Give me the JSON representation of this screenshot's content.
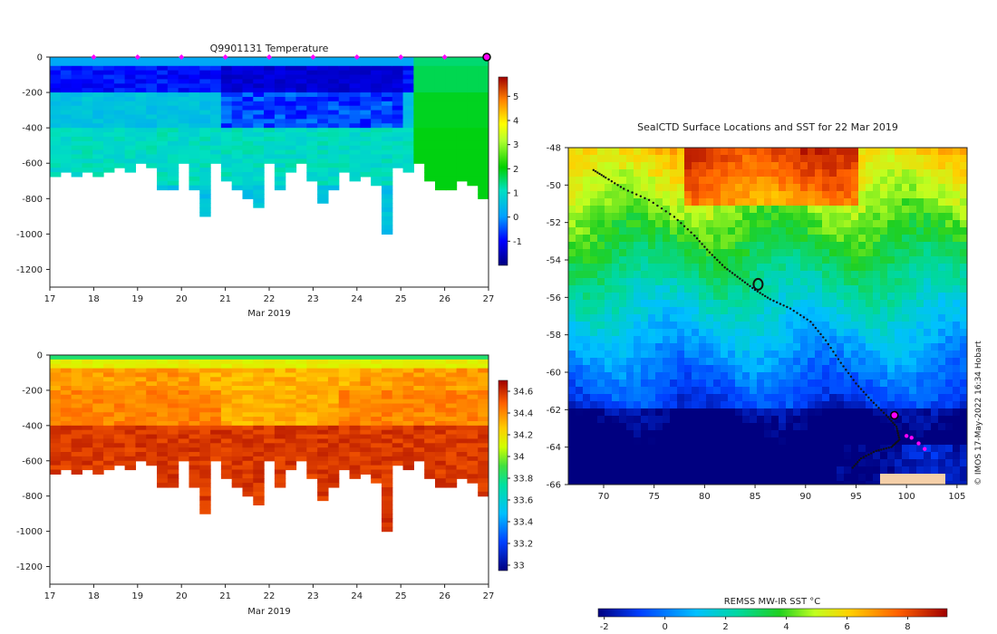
{
  "chart_data": [
    {
      "type": "heatmap",
      "id": "temperature",
      "title": "Q9901131  Temperature",
      "xlabel": "Mar 2019",
      "ylabel": "",
      "xlim": [
        17,
        27
      ],
      "ylim": [
        -1300,
        0
      ],
      "x_ticks": [
        17,
        18,
        19,
        20,
        21,
        22,
        23,
        24,
        25,
        26,
        27
      ],
      "y_ticks": [
        0,
        -200,
        -400,
        -600,
        -800,
        -1000,
        -1200
      ],
      "colorbar": {
        "min": -2.0,
        "max": 5.8,
        "ticks": [
          5,
          4,
          3,
          2,
          1,
          0,
          -1
        ]
      },
      "profile_markers_day": [
        18,
        19,
        20,
        21,
        22,
        23,
        24,
        25,
        26
      ],
      "selected_profile_day": 27,
      "profile_max_depth": [
        660,
        650,
        660,
        640,
        670,
        630,
        620,
        640,
        600,
        620,
        740,
        740,
        600,
        740,
        890,
        600,
        700,
        740,
        800,
        850,
        600,
        750,
        650,
        600,
        680,
        820,
        740,
        640,
        690,
        660,
        710,
        980,
        620,
        630,
        600,
        680,
        740,
        750,
        680,
        710,
        780
      ]
    },
    {
      "type": "heatmap",
      "id": "salinity",
      "title": "",
      "xlabel": "Mar 2019",
      "ylabel": "",
      "xlim": [
        17,
        27
      ],
      "ylim": [
        -1300,
        0
      ],
      "x_ticks": [
        17,
        18,
        19,
        20,
        21,
        22,
        23,
        24,
        25,
        26,
        27
      ],
      "y_ticks": [
        0,
        -200,
        -400,
        -600,
        -800,
        -1000,
        -1200
      ],
      "colorbar": {
        "min": 32.95,
        "max": 34.7,
        "ticks": [
          34.6,
          34.4,
          34.2,
          34,
          33.8,
          33.6,
          33.4,
          33.2,
          33
        ]
      }
    },
    {
      "type": "heatmap",
      "id": "sst-map",
      "title": "SealCTD Surface Locations and SST for 22 Mar 2019",
      "xlabel": "",
      "ylabel": "",
      "xlim": [
        66.5,
        106
      ],
      "ylim": [
        -66,
        -48
      ],
      "x_ticks": [
        70,
        75,
        80,
        85,
        90,
        95,
        100,
        105
      ],
      "y_ticks": [
        -48,
        -50,
        -52,
        -54,
        -56,
        -58,
        -60,
        -62,
        -64,
        -66
      ],
      "colorbar": {
        "label": "REMSS MW-IR SST °C",
        "min": -2.2,
        "max": 9.3,
        "ticks": [
          -2,
          0,
          2,
          4,
          6,
          8
        ]
      },
      "track": [
        [
          69.0,
          -49.2
        ],
        [
          70.2,
          -49.6
        ],
        [
          72.0,
          -50.2
        ],
        [
          74.5,
          -50.8
        ],
        [
          77.0,
          -51.7
        ],
        [
          79.0,
          -52.7
        ],
        [
          80.5,
          -53.6
        ],
        [
          82.0,
          -54.4
        ],
        [
          83.5,
          -55.0
        ],
        [
          85.0,
          -55.6
        ],
        [
          86.5,
          -56.1
        ],
        [
          88.5,
          -56.6
        ],
        [
          90.5,
          -57.3
        ],
        [
          92.0,
          -58.3
        ],
        [
          93.5,
          -59.5
        ],
        [
          95.0,
          -60.6
        ],
        [
          96.5,
          -61.5
        ],
        [
          98.0,
          -62.3
        ],
        [
          99.0,
          -62.9
        ],
        [
          99.3,
          -63.6
        ],
        [
          98.5,
          -64.0
        ],
        [
          97.0,
          -64.2
        ],
        [
          95.5,
          -64.6
        ],
        [
          94.5,
          -65.2
        ]
      ],
      "recent_positions": [
        [
          100.5,
          -63.5
        ],
        [
          101.2,
          -63.8
        ],
        [
          101.8,
          -64.1
        ],
        [
          100.0,
          -63.4
        ]
      ],
      "current_position": [
        98.8,
        -62.3
      ],
      "copyright": "© IMOS 17-May-2022 16:34 Hobart"
    }
  ]
}
